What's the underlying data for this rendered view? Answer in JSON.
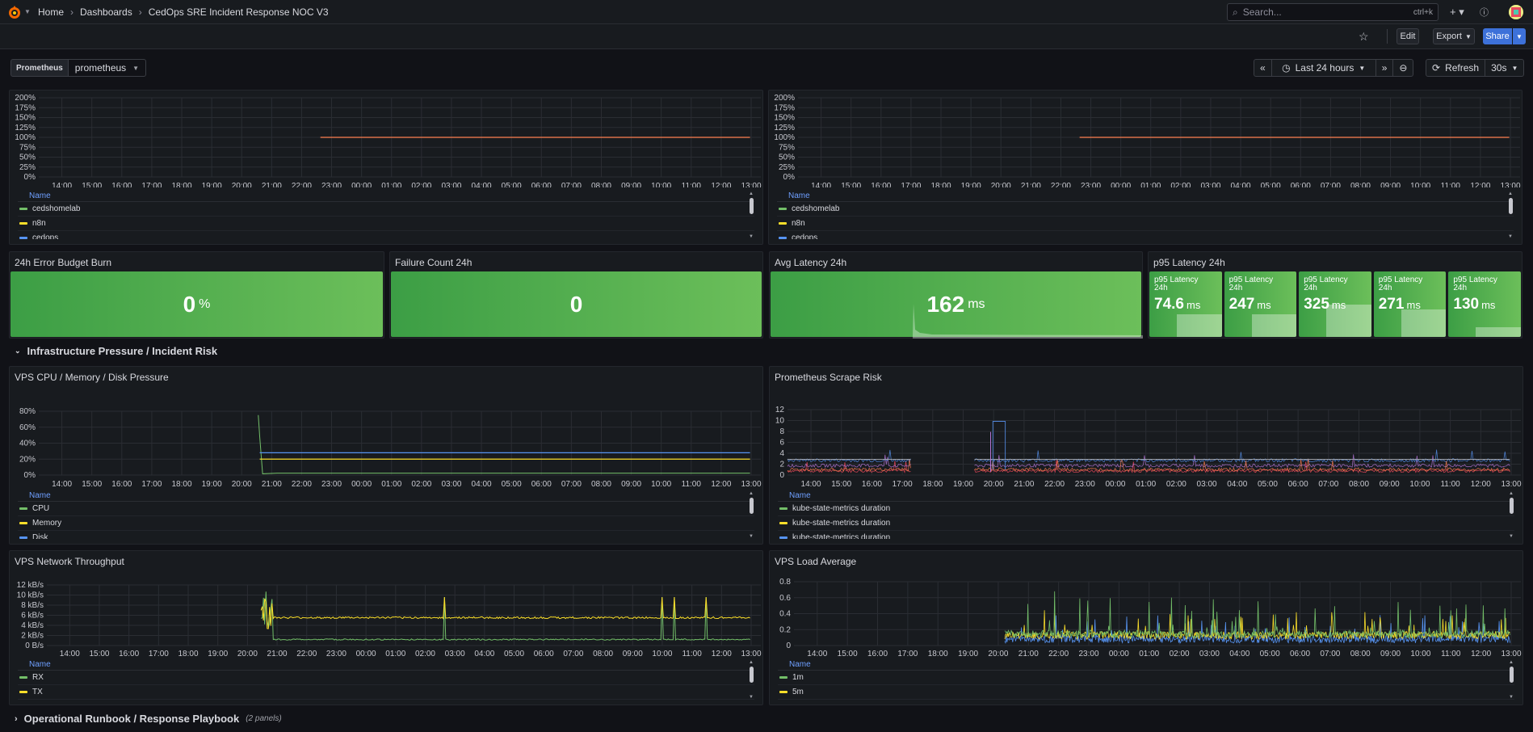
{
  "breadcrumbs": [
    "Home",
    "Dashboards",
    "CedOps SRE Incident Response NOC V3"
  ],
  "search": {
    "placeholder": "Search...",
    "shortcut": "ctrl+k"
  },
  "toolbar": {
    "edit": "Edit",
    "export": "Export",
    "share": "Share"
  },
  "variables": {
    "label": "Prometheus",
    "value": "prometheus"
  },
  "time": {
    "range": "Last 24 hours",
    "refresh": "Refresh",
    "interval": "30s"
  },
  "colors": {
    "green": "#73bf69",
    "yellow": "#fade2a",
    "blue": "#5794f2",
    "red": "#f2495c",
    "orange": "#ff7f50",
    "purple": "#b877d9"
  },
  "time_ticks": [
    "14:00",
    "15:00",
    "16:00",
    "17:00",
    "18:00",
    "19:00",
    "20:00",
    "21:00",
    "22:00",
    "23:00",
    "00:00",
    "01:00",
    "02:00",
    "03:00",
    "04:00",
    "05:00",
    "06:00",
    "07:00",
    "08:00",
    "09:00",
    "10:00",
    "11:00",
    "12:00",
    "13:00"
  ],
  "legend_header": "Name",
  "availability_left": {
    "y_ticks": [
      "200%",
      "175%",
      "150%",
      "125%",
      "100%",
      "75%",
      "50%",
      "25%",
      "0%"
    ],
    "legend": [
      "cedshomelab",
      "n8n",
      "cedops"
    ]
  },
  "availability_right": {
    "y_ticks": [
      "200%",
      "175%",
      "150%",
      "125%",
      "100%",
      "75%",
      "50%",
      "25%",
      "0%"
    ],
    "legend": [
      "cedshomelab",
      "n8n",
      "cedops"
    ]
  },
  "stats": {
    "error_budget": {
      "title": "24h Error Budget Burn",
      "value": "0",
      "unit": "%"
    },
    "failure_count": {
      "title": "Failure Count 24h",
      "value": "0",
      "unit": ""
    },
    "avg_latency": {
      "title": "Avg Latency 24h",
      "value": "162",
      "unit": "ms"
    },
    "p95": {
      "title": "p95 Latency 24h",
      "items": [
        {
          "label": "p95 Latency 24h",
          "value": "74.6",
          "unit": "ms",
          "level": 0.35
        },
        {
          "label": "p95 Latency 24h",
          "value": "247",
          "unit": "ms",
          "level": 0.35
        },
        {
          "label": "p95 Latency 24h",
          "value": "325",
          "unit": "ms",
          "level": 0.5
        },
        {
          "label": "p95 Latency 24h",
          "value": "271",
          "unit": "ms",
          "level": 0.42
        },
        {
          "label": "p95 Latency 24h",
          "value": "130",
          "unit": "ms",
          "level": 0.15
        }
      ]
    }
  },
  "rows": {
    "infra": "Infrastructure Pressure / Incident Risk",
    "runbook": "Operational Runbook / Response Playbook",
    "runbook_count": "(2 panels)"
  },
  "cpu_panel": {
    "title": "VPS CPU / Memory / Disk Pressure",
    "y_ticks": [
      "80%",
      "60%",
      "40%",
      "20%",
      "0%"
    ],
    "legend": [
      "CPU",
      "Memory",
      "Disk"
    ]
  },
  "scrape_panel": {
    "title": "Prometheus Scrape Risk",
    "y_ticks": [
      "12",
      "10",
      "8",
      "6",
      "4",
      "2",
      "0"
    ],
    "legend": [
      "kube-state-metrics duration",
      "kube-state-metrics duration",
      "kube-state-metrics duration"
    ]
  },
  "net_panel": {
    "title": "VPS Network Throughput",
    "y_ticks": [
      "12 kB/s",
      "10 kB/s",
      "8 kB/s",
      "6 kB/s",
      "4 kB/s",
      "2 kB/s",
      "0 B/s"
    ],
    "legend": [
      "RX",
      "TX"
    ]
  },
  "load_panel": {
    "title": "VPS Load Average",
    "y_ticks": [
      "0.8",
      "0.6",
      "0.4",
      "0.2",
      "0"
    ],
    "legend": [
      "1m",
      "5m"
    ]
  }
}
